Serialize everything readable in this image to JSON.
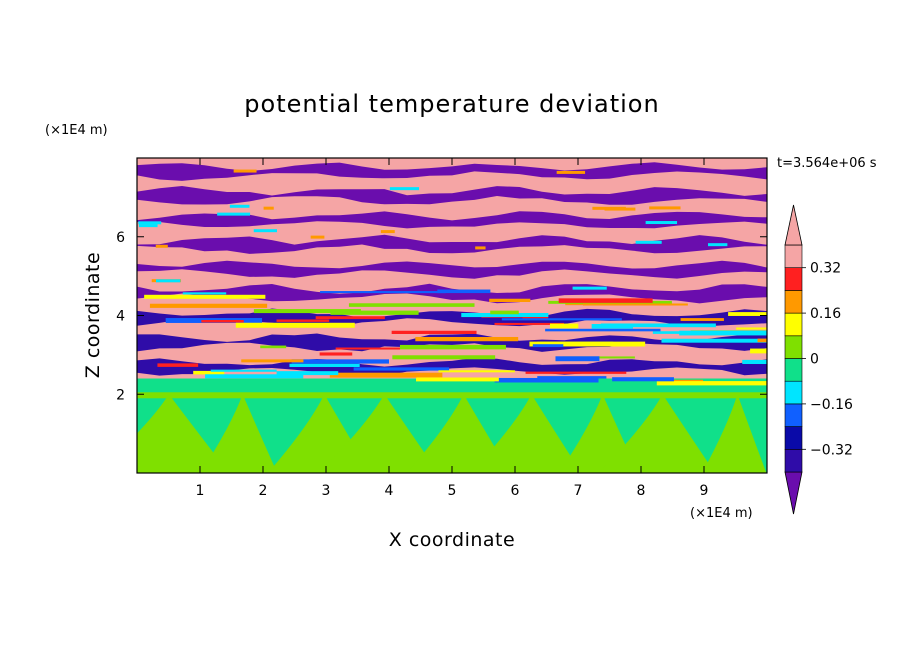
{
  "chart_data": {
    "type": "heatmap",
    "title": "potential temperature deviation",
    "time_label": "t=3.564e+06 s",
    "xlabel": "X coordinate",
    "ylabel": "Z coordinate",
    "x_unit": "(×1E4 m)",
    "y_unit": "(×1E4 m)",
    "x_ticks": [
      1,
      2,
      3,
      4,
      5,
      6,
      7,
      8,
      9
    ],
    "y_ticks": [
      2,
      4,
      6
    ],
    "xlim": [
      0,
      10
    ],
    "ylim": [
      0,
      8
    ],
    "colorbar": {
      "levels": [
        -0.4,
        -0.32,
        -0.24,
        -0.16,
        -0.08,
        0,
        0.08,
        0.16,
        0.24,
        0.32,
        0.4
      ],
      "colors": [
        "#6a0dad",
        "#2f0ca8",
        "#0a0aa8",
        "#1060ff",
        "#00e5ff",
        "#10e08a",
        "#7fe000",
        "#ffff00",
        "#ff9900",
        "#ff2020",
        "#f5a5a5"
      ],
      "labels": [
        {
          "value": -0.32,
          "text": "−0.32"
        },
        {
          "value": -0.16,
          "text": "−0.16"
        },
        {
          "value": 0,
          "text": "0"
        },
        {
          "value": 0.16,
          "text": "0.16"
        },
        {
          "value": 0.32,
          "text": "0.32"
        }
      ],
      "extend": "both"
    }
  }
}
